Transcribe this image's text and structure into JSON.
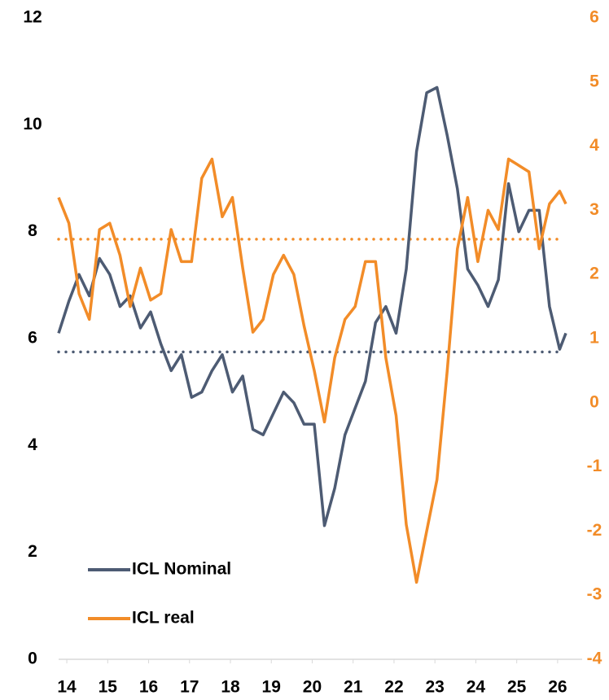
{
  "chart_data": {
    "type": "line",
    "x": [
      13.8,
      14.05,
      14.3,
      14.55,
      14.8,
      15.05,
      15.3,
      15.55,
      15.8,
      16.05,
      16.3,
      16.55,
      16.8,
      17.05,
      17.3,
      17.55,
      17.8,
      18.05,
      18.3,
      18.55,
      18.8,
      19.05,
      19.3,
      19.55,
      19.8,
      20.05,
      20.3,
      20.55,
      20.8,
      21.05,
      21.3,
      21.55,
      21.8,
      22.05,
      22.3,
      22.55,
      22.8,
      23.05,
      23.3,
      23.55,
      23.8,
      24.05,
      24.3,
      24.55,
      24.8,
      25.05,
      25.3,
      25.55,
      25.8,
      26.05,
      26.2
    ],
    "xlim": [
      13.8,
      26.4
    ],
    "xticks": [
      14,
      15,
      16,
      17,
      18,
      19,
      20,
      21,
      22,
      23,
      24,
      25,
      26
    ],
    "ylim": [
      0,
      12
    ],
    "yticks": [
      0,
      2,
      4,
      6,
      8,
      10,
      12
    ],
    "y2lim": [
      -4,
      6
    ],
    "y2ticks": [
      -4,
      -3,
      -2,
      -1,
      0,
      1,
      2,
      3,
      4,
      5,
      6
    ],
    "legend": "lower left",
    "series": [
      {
        "name": "ICL Nominal",
        "color": "#4d5b73",
        "axis": "y",
        "values": [
          6.1,
          6.7,
          7.2,
          6.8,
          7.5,
          7.2,
          6.6,
          6.8,
          6.2,
          6.5,
          5.9,
          5.4,
          5.7,
          4.9,
          5.0,
          5.4,
          5.7,
          5.0,
          5.3,
          4.3,
          4.2,
          4.6,
          5.0,
          4.8,
          4.4,
          4.4,
          2.5,
          3.2,
          4.2,
          4.7,
          5.2,
          6.3,
          6.6,
          6.1,
          7.3,
          9.5,
          10.6,
          10.7,
          9.8,
          8.8,
          7.3,
          7.0,
          6.6,
          7.1,
          8.9,
          8.0,
          8.4,
          8.4,
          6.6,
          5.8,
          6.1
        ]
      },
      {
        "name": "ICL real",
        "color": "#f28c28",
        "axis": "y2",
        "values": [
          3.2,
          2.8,
          1.7,
          1.3,
          2.7,
          2.8,
          2.3,
          1.5,
          2.1,
          1.6,
          1.7,
          2.7,
          2.2,
          2.2,
          3.5,
          3.8,
          2.9,
          3.2,
          2.1,
          1.1,
          1.3,
          2.0,
          2.3,
          2.0,
          1.2,
          0.5,
          -0.3,
          0.7,
          1.3,
          1.5,
          2.2,
          2.2,
          0.7,
          -0.2,
          -1.9,
          -2.8,
          -2.0,
          -1.2,
          0.5,
          2.4,
          3.2,
          2.2,
          3.0,
          2.7,
          3.8,
          3.7,
          3.6,
          2.4,
          3.1,
          3.3,
          3.1
        ]
      }
    ],
    "reference_lines": [
      {
        "value": 5.75,
        "axis": "y",
        "color": "#4d5b73"
      },
      {
        "value": 2.55,
        "axis": "y2",
        "color": "#f28c28"
      }
    ]
  }
}
